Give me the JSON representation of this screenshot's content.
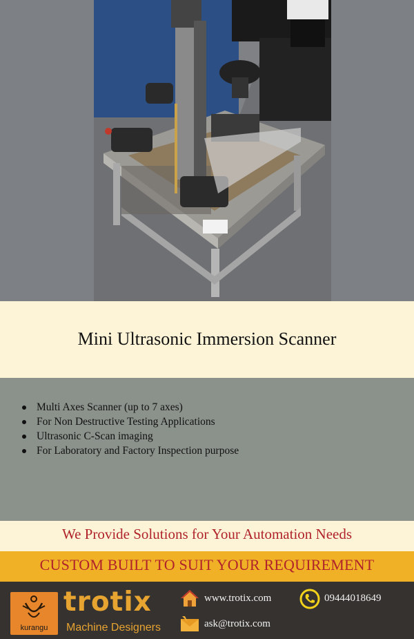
{
  "product": {
    "title": "Mini Ultrasonic Immersion Scanner",
    "photo_icon": "ultrasonic-scanner-photo"
  },
  "features": [
    "Multi Axes Scanner (up to 7 axes)",
    "For Non Destructive Testing Applications",
    "Ultrasonic C-Scan imaging",
    "For Laboratory and Factory Inspection purpose"
  ],
  "tagline": "We Provide Solutions for Your Automation Needs",
  "custom_banner": "CUSTOM BUILT TO SUIT YOUR REQUIREMENT",
  "footer": {
    "partner_logo": "kurangu",
    "brand_name": "trotix",
    "brand_subtitle": "Machine Designers",
    "website": "www.trotix.com",
    "email": "ask@trotix.com",
    "phone": "09444018649",
    "icons": {
      "website": "home-icon",
      "email": "envelope-icon",
      "phone": "phone-icon"
    }
  },
  "colors": {
    "accent_red": "#b0232b",
    "banner_yellow": "#f1b127",
    "cream": "#fdf4d8",
    "brand_orange": "#e8a431"
  }
}
